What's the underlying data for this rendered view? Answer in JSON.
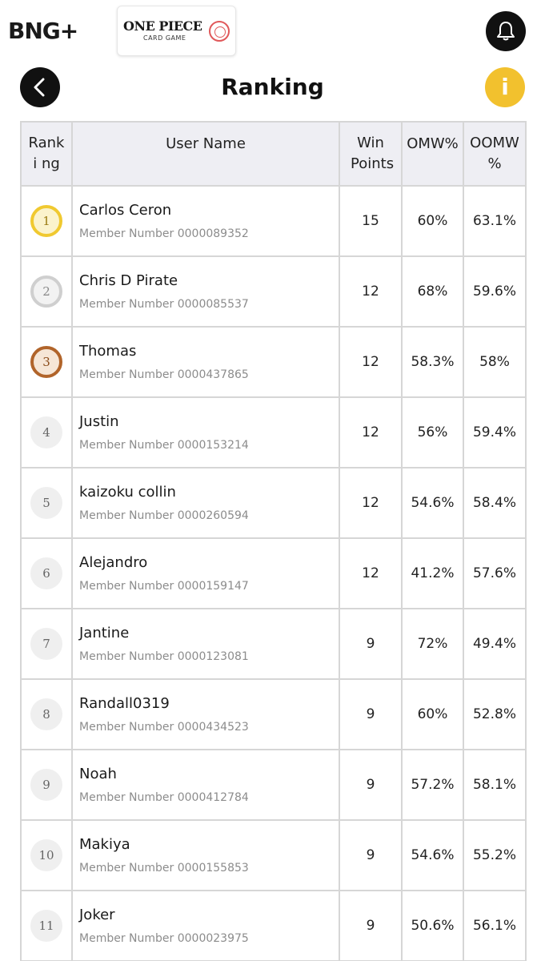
{
  "header": {
    "brand_logo": "B⁠⁠+",
    "brand_logo_text": "BNG+",
    "game_logo_main": "ONE PIECE",
    "game_logo_sub": "CARD GAME",
    "bell_icon": "bell-icon"
  },
  "titlebar": {
    "title": "Ranking",
    "info_label": "i",
    "back_icon": "chevron-left-icon"
  },
  "colors": {
    "accent_yellow": "#f2c12e",
    "button_dark": "#111111",
    "header_bg": "#eeeef3",
    "gold": "#f0c930",
    "silver": "#cfcfcf",
    "bronze": "#b1642a"
  },
  "table": {
    "headers": {
      "rank": "Ranki ng",
      "user": "User Name",
      "win": "Win Points",
      "omw": "OMW%",
      "oomw": "OOMW %"
    },
    "rows": [
      {
        "rank": "1",
        "medal": "gold",
        "name": "Carlos Ceron",
        "member": "Member Number 0000089352",
        "win": "15",
        "omw": "60%",
        "oomw": "63.1%"
      },
      {
        "rank": "2",
        "medal": "silver",
        "name": "Chris D Pirate",
        "member": "Member Number 0000085537",
        "win": "12",
        "omw": "68%",
        "oomw": "59.6%"
      },
      {
        "rank": "3",
        "medal": "bronze",
        "name": "Thomas",
        "member": "Member Number 0000437865",
        "win": "12",
        "omw": "58.3%",
        "oomw": "58%"
      },
      {
        "rank": "4",
        "medal": "plain",
        "name": "Justin",
        "member": "Member Number 0000153214",
        "win": "12",
        "omw": "56%",
        "oomw": "59.4%"
      },
      {
        "rank": "5",
        "medal": "plain",
        "name": "kaizoku collin",
        "member": "Member Number 0000260594",
        "win": "12",
        "omw": "54.6%",
        "oomw": "58.4%"
      },
      {
        "rank": "6",
        "medal": "plain",
        "name": "Alejandro",
        "member": "Member Number 0000159147",
        "win": "12",
        "omw": "41.2%",
        "oomw": "57.6%"
      },
      {
        "rank": "7",
        "medal": "plain",
        "name": "Jantine",
        "member": "Member Number 0000123081",
        "win": "9",
        "omw": "72%",
        "oomw": "49.4%"
      },
      {
        "rank": "8",
        "medal": "plain",
        "name": "Randall0319",
        "member": "Member Number 0000434523",
        "win": "9",
        "omw": "60%",
        "oomw": "52.8%"
      },
      {
        "rank": "9",
        "medal": "plain",
        "name": "Noah",
        "member": "Member Number 0000412784",
        "win": "9",
        "omw": "57.2%",
        "oomw": "58.1%"
      },
      {
        "rank": "10",
        "medal": "plain",
        "name": "Makiya",
        "member": "Member Number 0000155853",
        "win": "9",
        "omw": "54.6%",
        "oomw": "55.2%"
      },
      {
        "rank": "11",
        "medal": "plain",
        "name": "Joker",
        "member": "Member Number 0000023975",
        "win": "9",
        "omw": "50.6%",
        "oomw": "56.1%"
      }
    ]
  }
}
